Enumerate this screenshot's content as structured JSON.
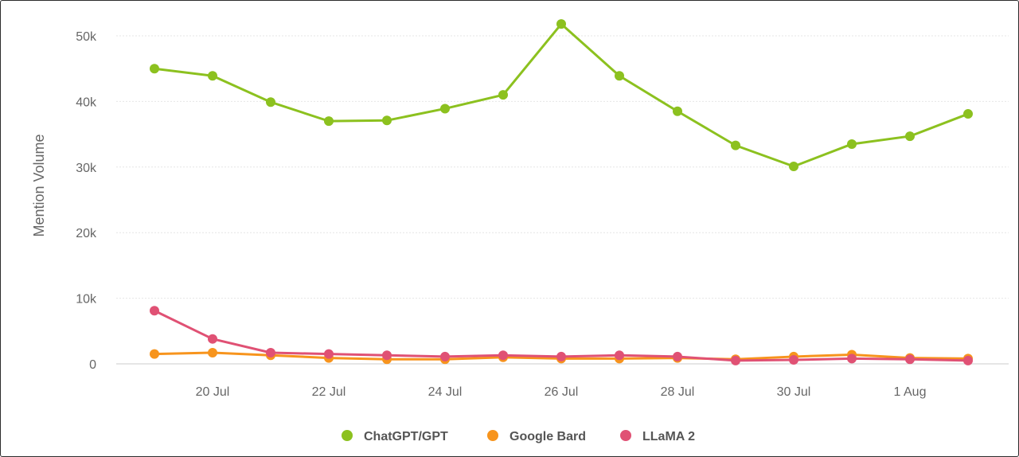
{
  "chart_data": {
    "type": "line",
    "title": "",
    "xlabel": "",
    "ylabel": "Mention Volume",
    "ylim": [
      0,
      55000
    ],
    "y_ticks": [
      0,
      10000,
      20000,
      30000,
      40000,
      50000
    ],
    "y_tick_labels": [
      "0",
      "10k",
      "20k",
      "30k",
      "40k",
      "50k"
    ],
    "x": [
      "19 Jul",
      "20 Jul",
      "21 Jul",
      "22 Jul",
      "23 Jul",
      "24 Jul",
      "25 Jul",
      "26 Jul",
      "27 Jul",
      "28 Jul",
      "29 Jul",
      "30 Jul",
      "31 Jul",
      "1 Aug",
      "2 Aug"
    ],
    "x_tick_labels": [
      "20 Jul",
      "22 Jul",
      "24 Jul",
      "26 Jul",
      "28 Jul",
      "30 Jul",
      "1 Aug"
    ],
    "x_tick_indices": [
      1,
      3,
      5,
      7,
      9,
      11,
      13
    ],
    "grid": true,
    "legend_position": "bottom-center",
    "series": [
      {
        "name": "ChatGPT/GPT",
        "color": "#8cc11f",
        "values": [
          45000,
          43900,
          39900,
          37000,
          37100,
          38900,
          41000,
          51800,
          43900,
          38500,
          33300,
          30100,
          33500,
          34700,
          38100
        ]
      },
      {
        "name": "Google Bard",
        "color": "#f7941d",
        "values": [
          1500,
          1700,
          1300,
          900,
          700,
          700,
          1000,
          800,
          800,
          900,
          700,
          1100,
          1400,
          900,
          800
        ]
      },
      {
        "name": "LLaMA 2",
        "color": "#e05174",
        "values": [
          8100,
          3800,
          1700,
          1500,
          1300,
          1100,
          1300,
          1100,
          1300,
          1100,
          500,
          600,
          800,
          700,
          500
        ]
      }
    ]
  }
}
